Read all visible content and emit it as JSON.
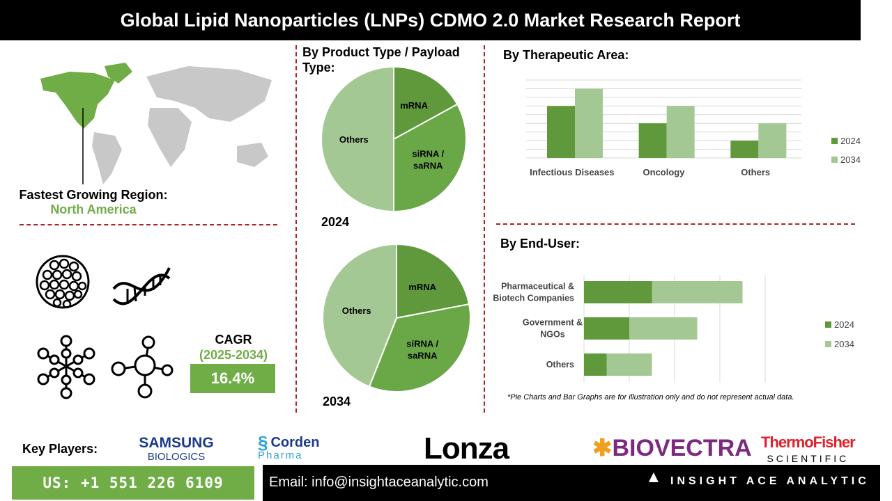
{
  "title": "Global Lipid Nanoparticles (LNPs) CDMO 2.0 Market Research Report",
  "region": {
    "label": "Fastest Growing Region:",
    "value": "North America"
  },
  "cagr": {
    "label": "CAGR",
    "period": "(2025-2034)",
    "value": "16.4%"
  },
  "colors": {
    "dark_green": "#5f993b",
    "mid_green": "#6aa847",
    "light_green": "#a4c893",
    "accent": "#70ad47",
    "divider": "#b22222"
  },
  "key_players": {
    "label": "Key Players:",
    "logos": [
      "SAMSUNG BIOLOGICS",
      "Corden Pharma",
      "Lonza",
      "BIOVECTRA",
      "ThermoFisher SCIENTIFIC"
    ]
  },
  "footer": {
    "phone": "US: +1 551 226 6109",
    "email": "Email: info@insightaceanalytic.com",
    "brand": "INSIGHT ACE ANALYTIC"
  },
  "note": "*Pie Charts and Bar Graphs are for illustration only and do not represent actual data.",
  "chart_data": [
    {
      "type": "pie",
      "title": "By Product Type / Payload Type:",
      "label": "2024",
      "labels": [
        "mRNA",
        "siRNA / saRNA",
        "Others"
      ],
      "values": [
        17,
        33,
        50
      ]
    },
    {
      "type": "pie",
      "title": "By Product Type / Payload Type:",
      "label": "2034",
      "labels": [
        "mRNA",
        "siRNA / saRNA",
        "Others"
      ],
      "values": [
        22,
        34,
        44
      ]
    },
    {
      "type": "bar",
      "title": "By Therapeutic Area:",
      "categories": [
        "Infectious Diseases",
        "Oncology",
        "Others"
      ],
      "series": [
        {
          "name": "2024",
          "values": [
            6,
            4,
            2
          ]
        },
        {
          "name": "2034",
          "values": [
            8,
            6,
            4
          ]
        }
      ],
      "ylim": [
        0,
        9
      ],
      "grid": true,
      "legend": "right"
    },
    {
      "type": "bar",
      "orientation": "horizontal-stacked",
      "title": "By End-User:",
      "categories": [
        "Pharmaceutical & Biotech Companies",
        "Government & NGOs",
        "Others"
      ],
      "series": [
        {
          "name": "2024",
          "values": [
            15,
            10,
            5
          ]
        },
        {
          "name": "2034",
          "values": [
            20,
            15,
            10
          ]
        }
      ],
      "xlim": [
        0,
        40
      ],
      "grid": true,
      "legend": "right"
    }
  ]
}
